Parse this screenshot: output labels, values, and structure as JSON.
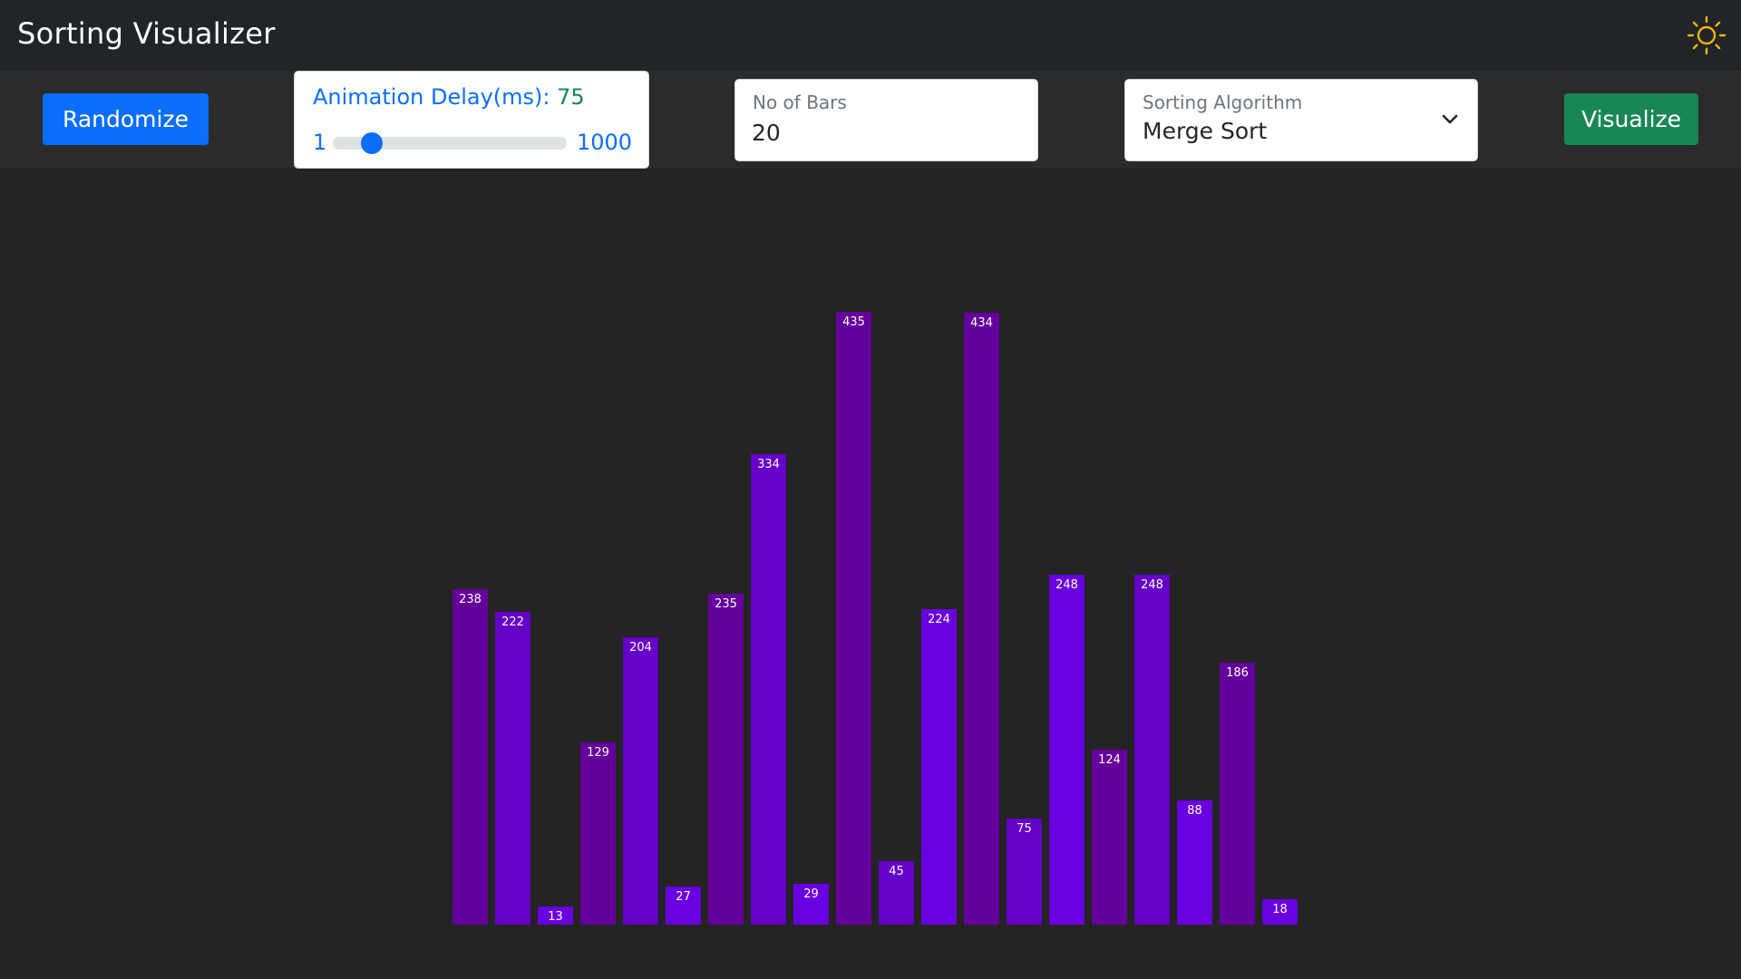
{
  "header": {
    "title": "Sorting Visualizer",
    "theme_icon": "sun-icon",
    "theme_icon_color": "#f0b400"
  },
  "toolbar": {
    "randomize_label": "Randomize",
    "visualize_label": "Visualize",
    "delay": {
      "label": "Animation Delay(ms): ",
      "value": "75",
      "min": "1",
      "max": "1000",
      "level": 75
    },
    "bars": {
      "label": "No of Bars",
      "value": "20"
    },
    "algorithm": {
      "label": "Sorting Algorithm",
      "selected": "Merge Sort"
    }
  },
  "colors": {
    "primary": "#0d6efd",
    "success": "#198754",
    "bar_dark": "#64009b",
    "bar_mid": "#6500c8",
    "bar_bright": "#6900e0"
  },
  "chart_data": {
    "type": "bar",
    "values": [
      238,
      222,
      13,
      129,
      204,
      27,
      235,
      334,
      29,
      435,
      45,
      224,
      434,
      75,
      248,
      124,
      248,
      88,
      186,
      18
    ],
    "labels": [
      "238",
      "222",
      "13",
      "129",
      "204",
      "27",
      "235",
      "334",
      "29",
      "435",
      "45",
      "224",
      "434",
      "75",
      "248",
      "124",
      "248",
      "88",
      "186",
      "18"
    ],
    "bar_colors": [
      "#64009b",
      "#6500c8",
      "#6900e0",
      "#64009b",
      "#6500c8",
      "#6900e0",
      "#64009b",
      "#6500c8",
      "#6900e0",
      "#64009b",
      "#6500c8",
      "#6900e0",
      "#64009b",
      "#6500c8",
      "#6900e0",
      "#64009b",
      "#6500c8",
      "#6900e0",
      "#64009b",
      "#6900e0"
    ]
  }
}
